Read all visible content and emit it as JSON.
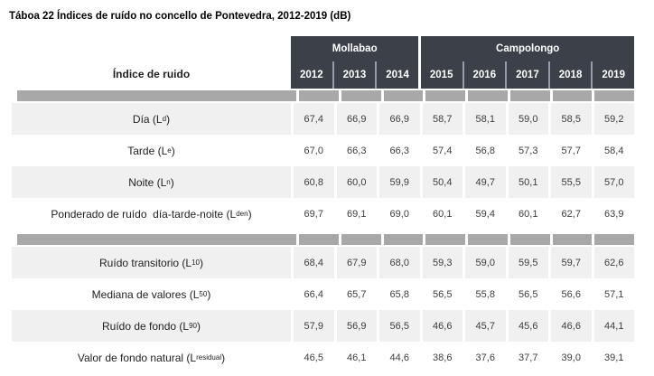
{
  "title": "Táboa 22 Índices de ruído no concello de Pontevedra, 2012-2019 (dB)",
  "table": {
    "row_header": "Índice de ruido",
    "groups": [
      {
        "label": "Mollabao",
        "span": 3
      },
      {
        "label": "Campolongo",
        "span": 5
      }
    ],
    "years": [
      "2012",
      "2013",
      "2014",
      "2015",
      "2016",
      "2017",
      "2018",
      "2019"
    ],
    "rows": [
      {
        "label_pre": "Día (L",
        "label_sub": "d",
        "label_post": ")",
        "values": [
          "67,4",
          "66,9",
          "66,9",
          "58,7",
          "58,1",
          "59,0",
          "58,5",
          "59,2"
        ]
      },
      {
        "label_pre": "Tarde (L",
        "label_sub": "e",
        "label_post": ")",
        "values": [
          "67,0",
          "66,3",
          "66,3",
          "57,4",
          "56,8",
          "57,3",
          "57,7",
          "58,4"
        ]
      },
      {
        "label_pre": "Noite (L",
        "label_sub": "n",
        "label_post": ")",
        "values": [
          "60,8",
          "60,0",
          "59,9",
          "50,4",
          "49,7",
          "50,1",
          "55,5",
          "57,0"
        ]
      },
      {
        "label_pre": "Ponderado de ruído  día-tarde-noite (L",
        "label_sub": "den",
        "label_post": ")",
        "values": [
          "69,7",
          "69,1",
          "69,0",
          "60,1",
          "59,4",
          "60,1",
          "62,7",
          "63,9"
        ]
      },
      {
        "label_pre": "Ruído transitorio (L",
        "label_sub": "10",
        "label_post": ")",
        "values": [
          "68,4",
          "67,9",
          "68,0",
          "59,3",
          "59,0",
          "59,5",
          "59,7",
          "62,6"
        ]
      },
      {
        "label_pre": "Mediana de valores (L",
        "label_sub": "50",
        "label_post": ")",
        "values": [
          "66,4",
          "65,7",
          "65,8",
          "56,5",
          "55,8",
          "56,5",
          "56,6",
          "57,1"
        ]
      },
      {
        "label_pre": "Ruído de fondo (L",
        "label_sub": "90",
        "label_post": ")",
        "values": [
          "57,9",
          "56,9",
          "56,5",
          "46,6",
          "45,7",
          "45,6",
          "46,6",
          "44,1"
        ]
      },
      {
        "label_pre": "Valor de fondo natural (L",
        "label_sub": "residual",
        "label_post": ")",
        "values": [
          "46,5",
          "46,1",
          "44,6",
          "38,6",
          "37,6",
          "37,7",
          "39,0",
          "39,1"
        ]
      }
    ],
    "colors": {
      "header_bg": "#3b4049",
      "header_text": "#ffffff",
      "separator_bar": "#a8a8a8",
      "row_alt_bg": "#f0f0f0",
      "year_divider": "#969ca5"
    }
  }
}
